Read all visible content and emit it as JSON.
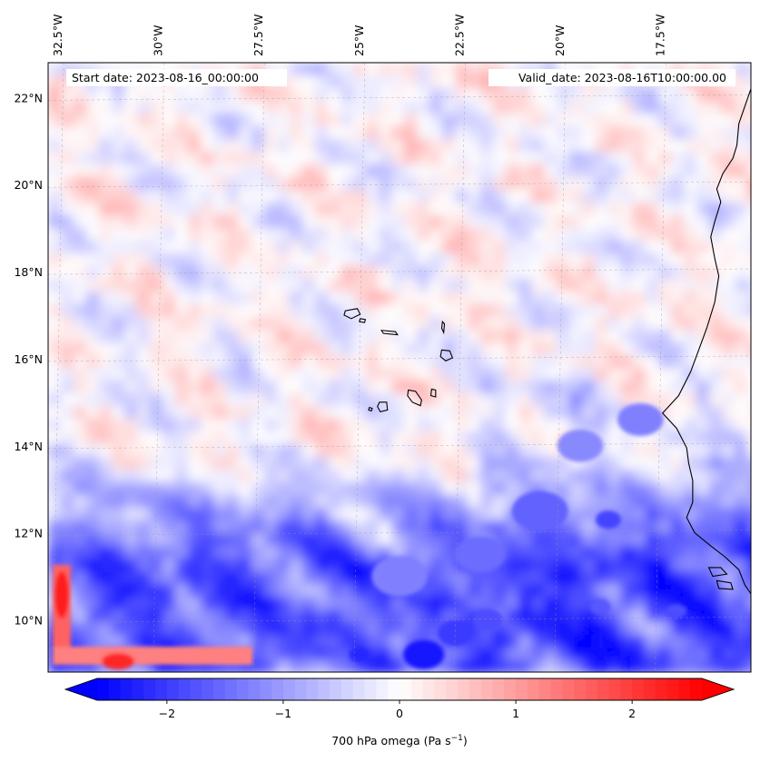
{
  "map": {
    "extent": {
      "lon_min": -32.75,
      "lon_max": -15.25,
      "lat_min": 8.8,
      "lat_max": 22.8
    },
    "lon_ticks": [
      {
        "value": -32.5,
        "label": "32.5°W"
      },
      {
        "value": -30,
        "label": "30°W"
      },
      {
        "value": -27.5,
        "label": "27.5°W"
      },
      {
        "value": -25,
        "label": "25°W"
      },
      {
        "value": -22.5,
        "label": "22.5°W"
      },
      {
        "value": -20,
        "label": "20°W"
      },
      {
        "value": -17.5,
        "label": "17.5°W"
      }
    ],
    "lat_ticks": [
      {
        "value": 22,
        "label": "22°N"
      },
      {
        "value": 20,
        "label": "20°N"
      },
      {
        "value": 18,
        "label": "18°N"
      },
      {
        "value": 16,
        "label": "16°N"
      },
      {
        "value": 14,
        "label": "14°N"
      },
      {
        "value": 12,
        "label": "12°N"
      },
      {
        "value": 10,
        "label": "10°N"
      }
    ],
    "gridlines": true,
    "start_date_label": "Start date: 2023-08-16_00:00:00",
    "valid_date_label": "Valid_date: 2023-08-16T10:00:00.00",
    "field": "700 hPa omega",
    "colormap": "bwr",
    "value_range": [
      -2.6,
      2.6
    ]
  },
  "colorbar": {
    "min": -2.6,
    "max": 2.6,
    "orientation": "horizontal",
    "extend": "both",
    "ticks": [
      {
        "value": -2,
        "label": "−2"
      },
      {
        "value": -1,
        "label": "−1"
      },
      {
        "value": 0,
        "label": "0"
      },
      {
        "value": 1,
        "label": "1"
      },
      {
        "value": 2,
        "label": "2"
      }
    ],
    "label": "700 hPa omega (Pa s",
    "label_sup": "−1",
    "label_end": ")"
  },
  "features": {
    "coastline": [
      [
        -15.25,
        22.2
      ],
      [
        -15.4,
        21.8
      ],
      [
        -15.55,
        21.4
      ],
      [
        -15.6,
        20.9
      ],
      [
        -15.7,
        20.6
      ],
      [
        -15.95,
        20.25
      ],
      [
        -16.1,
        19.9
      ],
      [
        -16.0,
        19.6
      ],
      [
        -16.15,
        19.15
      ],
      [
        -16.25,
        18.8
      ],
      [
        -16.15,
        18.3
      ],
      [
        -16.05,
        17.9
      ],
      [
        -16.15,
        17.3
      ],
      [
        -16.35,
        16.7
      ],
      [
        -16.55,
        16.2
      ],
      [
        -16.75,
        15.7
      ],
      [
        -17.05,
        15.15
      ],
      [
        -17.45,
        14.75
      ],
      [
        -17.1,
        14.4
      ],
      [
        -16.85,
        13.95
      ],
      [
        -16.8,
        13.6
      ],
      [
        -16.7,
        13.2
      ],
      [
        -16.7,
        12.7
      ],
      [
        -16.85,
        12.35
      ],
      [
        -16.65,
        12.0
      ],
      [
        -16.25,
        11.7
      ],
      [
        -15.9,
        11.45
      ],
      [
        -15.55,
        11.15
      ],
      [
        -15.4,
        10.8
      ],
      [
        -15.25,
        10.6
      ]
    ],
    "islands": [
      {
        "name": "Santo Antao",
        "ring": [
          [
            -25.35,
            17.1
          ],
          [
            -25.05,
            17.15
          ],
          [
            -24.98,
            17.02
          ],
          [
            -25.2,
            16.92
          ],
          [
            -25.38,
            17.0
          ]
        ]
      },
      {
        "name": "Sao Vicente",
        "ring": [
          [
            -24.98,
            16.92
          ],
          [
            -24.85,
            16.9
          ],
          [
            -24.87,
            16.83
          ],
          [
            -25.0,
            16.85
          ]
        ]
      },
      {
        "name": "Sao Nicolau",
        "ring": [
          [
            -24.45,
            16.65
          ],
          [
            -24.1,
            16.62
          ],
          [
            -24.05,
            16.55
          ],
          [
            -24.4,
            16.58
          ]
        ]
      },
      {
        "name": "Sal",
        "ring": [
          [
            -22.93,
            16.85
          ],
          [
            -22.88,
            16.8
          ],
          [
            -22.9,
            16.6
          ],
          [
            -22.95,
            16.7
          ]
        ]
      },
      {
        "name": "Boa Vista",
        "ring": [
          [
            -22.95,
            16.2
          ],
          [
            -22.75,
            16.18
          ],
          [
            -22.68,
            16.02
          ],
          [
            -22.85,
            15.95
          ],
          [
            -22.98,
            16.05
          ]
        ]
      },
      {
        "name": "Maio",
        "ring": [
          [
            -23.2,
            15.3
          ],
          [
            -23.1,
            15.28
          ],
          [
            -23.1,
            15.12
          ],
          [
            -23.22,
            15.15
          ]
        ]
      },
      {
        "name": "Santiago",
        "ring": [
          [
            -23.78,
            15.28
          ],
          [
            -23.6,
            15.25
          ],
          [
            -23.45,
            15.05
          ],
          [
            -23.48,
            14.92
          ],
          [
            -23.68,
            15.0
          ],
          [
            -23.8,
            15.15
          ]
        ]
      },
      {
        "name": "Fogo",
        "ring": [
          [
            -24.5,
            15.0
          ],
          [
            -24.32,
            15.0
          ],
          [
            -24.3,
            14.82
          ],
          [
            -24.48,
            14.78
          ],
          [
            -24.55,
            14.9
          ]
        ]
      },
      {
        "name": "Brava",
        "ring": [
          [
            -24.75,
            14.88
          ],
          [
            -24.68,
            14.86
          ],
          [
            -24.7,
            14.8
          ],
          [
            -24.77,
            14.82
          ]
        ]
      },
      {
        "name": "Bijagos-1",
        "ring": [
          [
            -16.3,
            11.2
          ],
          [
            -16.0,
            11.2
          ],
          [
            -15.85,
            11.05
          ],
          [
            -16.2,
            11.0
          ]
        ]
      },
      {
        "name": "Bijagos-2",
        "ring": [
          [
            -16.1,
            10.9
          ],
          [
            -15.75,
            10.85
          ],
          [
            -15.7,
            10.7
          ],
          [
            -16.05,
            10.72
          ]
        ]
      }
    ]
  }
}
